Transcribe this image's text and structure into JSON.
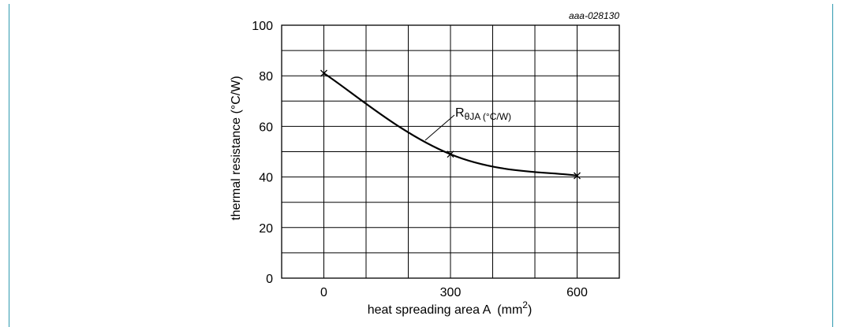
{
  "chart_data": {
    "type": "line",
    "figure_id": "aaa-028130",
    "xlabel": "heat spreading area A",
    "xlabel_unit_open": "(mm",
    "xlabel_unit_sup": "2",
    "xlabel_unit_close": ")",
    "ylabel": "thermal resistance (°C/W)",
    "xlim": [
      -100,
      700
    ],
    "ylim": [
      0,
      100
    ],
    "x_ticks": [
      0,
      300,
      600
    ],
    "y_ticks": [
      0,
      20,
      40,
      60,
      80,
      100
    ],
    "grid": true,
    "series": [
      {
        "name": "RθJA (°C/W)",
        "name_main": "R",
        "name_sub": "θJA (°C/W)",
        "color": "#000000",
        "x": [
          0,
          300,
          600
        ],
        "y": [
          81,
          49,
          40.5
        ]
      }
    ]
  }
}
